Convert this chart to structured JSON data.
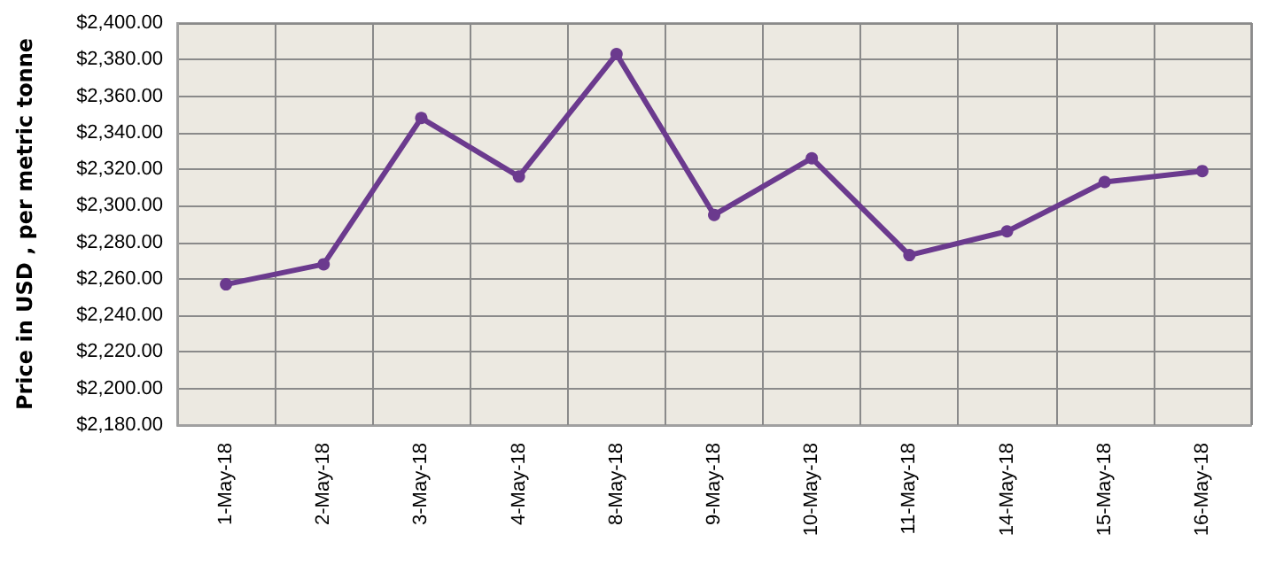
{
  "chart_data": {
    "type": "line",
    "ylabel": "Price in USD , per metric tonne",
    "categories": [
      "1-May-18",
      "2-May-18",
      "3-May-18",
      "4-May-18",
      "8-May-18",
      "9-May-18",
      "10-May-18",
      "11-May-18",
      "14-May-18",
      "15-May-18",
      "16-May-18"
    ],
    "series": [
      {
        "color": "#6b3a8e",
        "values": [
          2257,
          2268,
          2348,
          2316,
          2383,
          2295,
          2326,
          2273,
          2286,
          2313,
          2319
        ]
      }
    ],
    "ylim": [
      2180,
      2400
    ],
    "yticks": [
      {
        "value": 2180,
        "label": "$2,180.00"
      },
      {
        "value": 2200,
        "label": "$2,200.00"
      },
      {
        "value": 2220,
        "label": "$2,220.00"
      },
      {
        "value": 2240,
        "label": "$2,240.00"
      },
      {
        "value": 2260,
        "label": "$2,260.00"
      },
      {
        "value": 2280,
        "label": "$2,280.00"
      },
      {
        "value": 2300,
        "label": "$2,300.00"
      },
      {
        "value": 2320,
        "label": "$2,320.00"
      },
      {
        "value": 2340,
        "label": "$2,340.00"
      },
      {
        "value": 2360,
        "label": "$2,360.00"
      },
      {
        "value": 2380,
        "label": "$2,380.00"
      },
      {
        "value": 2400,
        "label": "$2,400.00"
      }
    ],
    "grid": true,
    "marker": "circle",
    "line_style": "solid"
  }
}
